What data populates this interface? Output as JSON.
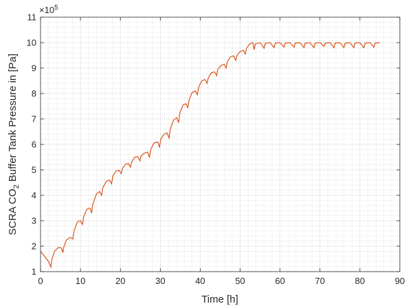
{
  "chart_data": {
    "type": "line",
    "title": "",
    "xlabel": "Time [h]",
    "ylabel": {
      "part1": "SCRA CO",
      "sub": "2",
      "part2": " Buffer Tank Pressure in [Pa]"
    },
    "y_scale_exponent": {
      "base": "×10",
      "exp": "5"
    },
    "xlim": [
      0,
      90
    ],
    "ylim": [
      1,
      11
    ],
    "x_ticks": [
      "0",
      "10",
      "20",
      "30",
      "40",
      "50",
      "60",
      "70",
      "80",
      "90"
    ],
    "y_ticks": [
      "1",
      "2",
      "3",
      "4",
      "5",
      "6",
      "7",
      "8",
      "9",
      "10",
      "11"
    ],
    "grid": "minor dotted",
    "legend": "none",
    "series": [
      {
        "color": "#d95319",
        "points": [
          [
            0,
            1.8
          ],
          [
            1.0,
            1.6
          ],
          [
            2.0,
            1.4
          ],
          [
            2.6,
            1.18
          ],
          [
            2.8,
            1.45
          ],
          [
            3.5,
            1.8
          ],
          [
            4.5,
            1.95
          ],
          [
            5.2,
            1.93
          ],
          [
            5.6,
            1.75
          ],
          [
            5.8,
            1.95
          ],
          [
            6.5,
            2.25
          ],
          [
            7.5,
            2.35
          ],
          [
            8.1,
            2.28
          ],
          [
            8.4,
            2.6
          ],
          [
            9.2,
            2.95
          ],
          [
            10.0,
            3.0
          ],
          [
            10.5,
            2.85
          ],
          [
            10.8,
            3.15
          ],
          [
            11.6,
            3.45
          ],
          [
            12.4,
            3.5
          ],
          [
            12.8,
            3.3
          ],
          [
            13.1,
            3.65
          ],
          [
            14.0,
            4.05
          ],
          [
            14.8,
            4.15
          ],
          [
            15.3,
            4.0
          ],
          [
            15.6,
            4.3
          ],
          [
            16.5,
            4.55
          ],
          [
            17.3,
            4.6
          ],
          [
            17.8,
            4.45
          ],
          [
            18.1,
            4.75
          ],
          [
            18.9,
            4.95
          ],
          [
            19.7,
            4.98
          ],
          [
            20.2,
            4.85
          ],
          [
            20.5,
            5.05
          ],
          [
            21.3,
            5.22
          ],
          [
            22.0,
            5.25
          ],
          [
            22.5,
            5.1
          ],
          [
            22.8,
            5.3
          ],
          [
            23.6,
            5.5
          ],
          [
            24.4,
            5.52
          ],
          [
            24.9,
            5.35
          ],
          [
            25.2,
            5.55
          ],
          [
            26.0,
            5.65
          ],
          [
            26.8,
            5.7
          ],
          [
            27.3,
            5.5
          ],
          [
            27.6,
            5.8
          ],
          [
            28.4,
            6.05
          ],
          [
            29.3,
            6.1
          ],
          [
            29.8,
            5.9
          ],
          [
            30.1,
            6.2
          ],
          [
            30.9,
            6.4
          ],
          [
            31.7,
            6.45
          ],
          [
            32.2,
            6.25
          ],
          [
            32.5,
            6.6
          ],
          [
            33.3,
            6.95
          ],
          [
            34.1,
            7.05
          ],
          [
            34.6,
            6.85
          ],
          [
            34.9,
            7.25
          ],
          [
            35.7,
            7.55
          ],
          [
            36.4,
            7.6
          ],
          [
            36.9,
            7.45
          ],
          [
            37.2,
            7.75
          ],
          [
            38.0,
            8.05
          ],
          [
            38.8,
            8.1
          ],
          [
            39.3,
            7.95
          ],
          [
            39.6,
            8.25
          ],
          [
            40.4,
            8.5
          ],
          [
            41.2,
            8.55
          ],
          [
            41.7,
            8.4
          ],
          [
            42.0,
            8.6
          ],
          [
            42.8,
            8.82
          ],
          [
            43.6,
            8.85
          ],
          [
            44.1,
            8.7
          ],
          [
            44.4,
            8.95
          ],
          [
            45.2,
            9.1
          ],
          [
            46.0,
            9.15
          ],
          [
            46.5,
            9.0
          ],
          [
            46.8,
            9.25
          ],
          [
            47.6,
            9.45
          ],
          [
            48.4,
            9.48
          ],
          [
            48.9,
            9.3
          ],
          [
            49.2,
            9.5
          ],
          [
            50.0,
            9.65
          ],
          [
            50.8,
            9.7
          ],
          [
            51.3,
            9.55
          ],
          [
            51.6,
            9.78
          ],
          [
            52.4,
            9.95
          ],
          [
            53.2,
            10.0
          ],
          [
            53.5,
            9.72
          ],
          [
            53.8,
            9.95
          ],
          [
            55.0,
            10.0
          ],
          [
            56.0,
            9.78
          ],
          [
            56.3,
            9.98
          ],
          [
            57.5,
            10.0
          ],
          [
            58.5,
            9.8
          ],
          [
            58.8,
            9.98
          ],
          [
            60.0,
            10.0
          ],
          [
            61.0,
            9.82
          ],
          [
            61.3,
            9.98
          ],
          [
            62.5,
            10.0
          ],
          [
            63.5,
            9.82
          ],
          [
            63.8,
            9.98
          ],
          [
            65.0,
            10.0
          ],
          [
            66.0,
            9.8
          ],
          [
            66.3,
            9.98
          ],
          [
            67.5,
            10.0
          ],
          [
            68.5,
            9.8
          ],
          [
            68.8,
            9.98
          ],
          [
            70.0,
            10.0
          ],
          [
            71.0,
            9.85
          ],
          [
            71.3,
            9.98
          ],
          [
            72.5,
            10.0
          ],
          [
            73.5,
            9.8
          ],
          [
            73.8,
            9.98
          ],
          [
            75.0,
            10.0
          ],
          [
            76.0,
            9.8
          ],
          [
            76.3,
            9.98
          ],
          [
            77.5,
            10.0
          ],
          [
            78.5,
            9.8
          ],
          [
            78.8,
            9.98
          ],
          [
            80.0,
            10.0
          ],
          [
            81.0,
            9.8
          ],
          [
            81.3,
            9.98
          ],
          [
            82.5,
            10.0
          ],
          [
            83.5,
            9.82
          ],
          [
            83.8,
            9.98
          ],
          [
            85.0,
            10.0
          ]
        ]
      }
    ]
  }
}
